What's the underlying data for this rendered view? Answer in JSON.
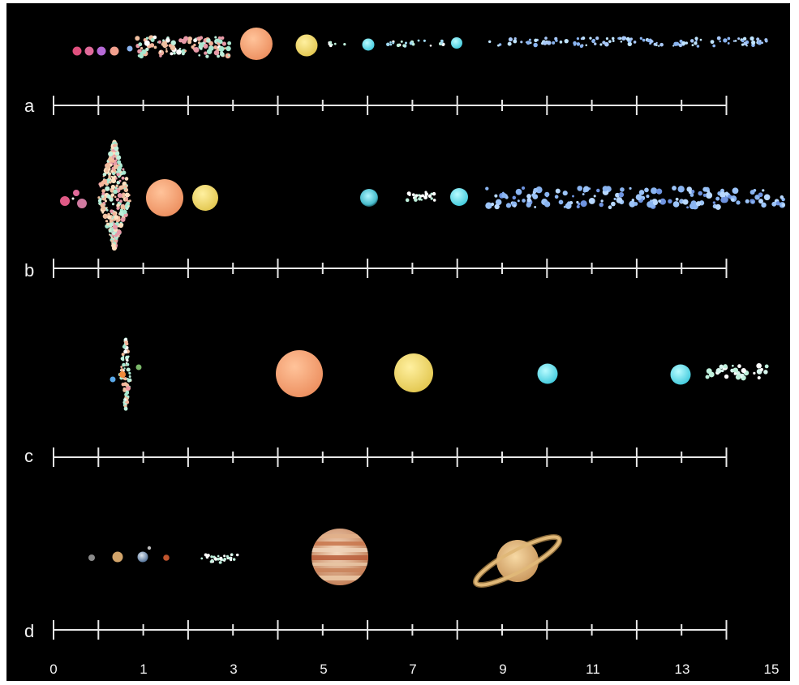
{
  "panels": [
    {
      "label": "a"
    },
    {
      "label": "b"
    },
    {
      "label": "c"
    },
    {
      "label": "d"
    }
  ],
  "axis": {
    "min": 0,
    "max": 15,
    "major_ticks": [
      0,
      1,
      2,
      3,
      4,
      5,
      6,
      7,
      8,
      9,
      10,
      11,
      12,
      13,
      14,
      15
    ],
    "tick_labels": [
      "0",
      "1",
      "3",
      "5",
      "7",
      "9",
      "11",
      "13",
      "15"
    ]
  },
  "colors": {
    "background": "#000000",
    "axis": "#e8e8e8",
    "rock_pink": "#e05a86",
    "rock_violet": "#c060c8",
    "rock_salmon": "#f0a090",
    "giant_orange": "#f6a878",
    "giant_yellow": "#eedb6c",
    "ice_cyan": "#6fe0ee",
    "belt_blue": "#8ab4f0",
    "belt_mint": "#bff0dc"
  }
}
